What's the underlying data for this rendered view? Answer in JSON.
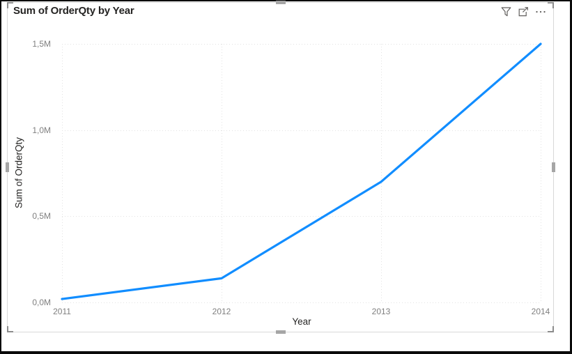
{
  "visual": {
    "title": "Sum of OrderQty by Year",
    "header_icons": [
      {
        "name": "filter-icon",
        "meaning": "Filters"
      },
      {
        "name": "focus-mode-icon",
        "meaning": "Focus mode"
      },
      {
        "name": "more-options-icon",
        "meaning": "More options"
      }
    ],
    "selected": true
  },
  "chart_data": {
    "type": "line",
    "title": "Sum of OrderQty by Year",
    "categories": [
      "2011",
      "2012",
      "2013",
      "2014"
    ],
    "series": [
      {
        "name": "Sum of OrderQty",
        "values": [
          20000,
          140000,
          700000,
          1500000
        ]
      }
    ],
    "xlabel": "Year",
    "ylabel": "Sum of OrderQty",
    "ylim": [
      0,
      1500000
    ],
    "y_ticks": [
      {
        "value": 0,
        "label": "0,0M"
      },
      {
        "value": 500000,
        "label": "0,5M"
      },
      {
        "value": 1000000,
        "label": "1,0M"
      },
      {
        "value": 1500000,
        "label": "1,5M"
      }
    ],
    "grid": true,
    "legend_position": "none",
    "line_color": "#118DFF",
    "grid_color": "#e2e2e2",
    "tick_label_color": "#7f7f7f",
    "axis_title_color": "#252423"
  }
}
